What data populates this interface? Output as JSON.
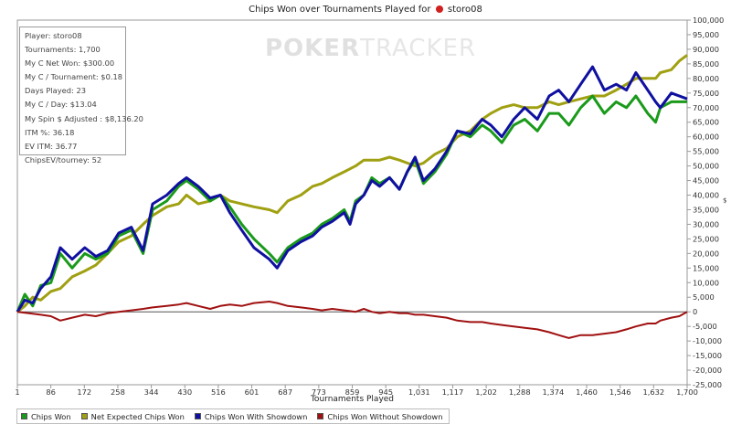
{
  "header": {
    "title_text": "Chips Won over Tournaments Played for",
    "player_name": "storo08",
    "flag_icon": "red-spade-icon"
  },
  "watermark": {
    "part1": "POKER",
    "part2": "TRACKER"
  },
  "stats": [
    "Player: storo08",
    "Tournaments: 1,700",
    "My C Net Won: $300.00",
    "My C / Tournament: $0.18",
    "Days Played: 23",
    "My C / Day: $13.04",
    "My Spin $ Adjusted : $8,136.20",
    "ITM %: 36.18",
    "EV ITM: 36.77",
    "ChipsEV/tourney: 52"
  ],
  "chart_data": {
    "type": "line",
    "title": "Chips Won over Tournaments Played for storo08",
    "xlabel": "Tournaments Played",
    "ylabel": "$",
    "xlim": [
      1,
      1700
    ],
    "ylim": [
      -25000,
      100000
    ],
    "x_ticks": [
      "1",
      "86",
      "172",
      "258",
      "344",
      "430",
      "516",
      "601",
      "687",
      "773",
      "859",
      "945",
      "1,031",
      "1,117",
      "1,202",
      "1,288",
      "1,374",
      "1,460",
      "1,546",
      "1,632",
      "1,700"
    ],
    "y_ticks": [
      "100,000",
      "95,000",
      "90,000",
      "85,000",
      "80,000",
      "75,000",
      "70,000",
      "65,000",
      "60,000",
      "55,000",
      "50,000",
      "45,000",
      "40,000",
      "35,000",
      "30,000",
      "25,000",
      "20,000",
      "15,000",
      "10,000",
      "5,000",
      "0",
      "-5,000",
      "-10,000",
      "-15,000",
      "-20,000",
      "-25,000"
    ],
    "legend_position": "bottom",
    "series": [
      {
        "name": "Chips Won",
        "color": "#1a9a1a",
        "points": [
          [
            1,
            0
          ],
          [
            20,
            6000
          ],
          [
            40,
            2000
          ],
          [
            60,
            9000
          ],
          [
            86,
            10000
          ],
          [
            110,
            20000
          ],
          [
            140,
            15000
          ],
          [
            172,
            20000
          ],
          [
            200,
            18000
          ],
          [
            230,
            20000
          ],
          [
            258,
            26000
          ],
          [
            290,
            28000
          ],
          [
            320,
            20000
          ],
          [
            344,
            35000
          ],
          [
            380,
            38000
          ],
          [
            410,
            43000
          ],
          [
            430,
            45000
          ],
          [
            460,
            42000
          ],
          [
            490,
            38000
          ],
          [
            516,
            40000
          ],
          [
            540,
            36000
          ],
          [
            570,
            30000
          ],
          [
            601,
            25000
          ],
          [
            640,
            20000
          ],
          [
            660,
            17000
          ],
          [
            687,
            22000
          ],
          [
            720,
            25000
          ],
          [
            750,
            27000
          ],
          [
            773,
            30000
          ],
          [
            800,
            32000
          ],
          [
            830,
            35000
          ],
          [
            845,
            31000
          ],
          [
            859,
            38000
          ],
          [
            880,
            40000
          ],
          [
            900,
            46000
          ],
          [
            920,
            44000
          ],
          [
            945,
            46000
          ],
          [
            970,
            42000
          ],
          [
            990,
            48000
          ],
          [
            1010,
            52000
          ],
          [
            1031,
            44000
          ],
          [
            1060,
            48000
          ],
          [
            1090,
            54000
          ],
          [
            1117,
            62000
          ],
          [
            1150,
            60000
          ],
          [
            1180,
            64000
          ],
          [
            1202,
            62000
          ],
          [
            1230,
            58000
          ],
          [
            1260,
            64000
          ],
          [
            1288,
            66000
          ],
          [
            1320,
            62000
          ],
          [
            1350,
            68000
          ],
          [
            1374,
            68000
          ],
          [
            1400,
            64000
          ],
          [
            1430,
            70000
          ],
          [
            1460,
            74000
          ],
          [
            1490,
            68000
          ],
          [
            1520,
            72000
          ],
          [
            1546,
            70000
          ],
          [
            1570,
            74000
          ],
          [
            1600,
            68000
          ],
          [
            1620,
            65000
          ],
          [
            1632,
            70000
          ],
          [
            1660,
            72000
          ],
          [
            1700,
            72000
          ]
        ]
      },
      {
        "name": "Net Expected Chips Won",
        "color": "#a0a012",
        "points": [
          [
            1,
            0
          ],
          [
            20,
            2000
          ],
          [
            40,
            5000
          ],
          [
            60,
            4000
          ],
          [
            86,
            7000
          ],
          [
            110,
            8000
          ],
          [
            140,
            12000
          ],
          [
            172,
            14000
          ],
          [
            200,
            16000
          ],
          [
            230,
            20000
          ],
          [
            258,
            24000
          ],
          [
            290,
            26000
          ],
          [
            320,
            30000
          ],
          [
            344,
            33000
          ],
          [
            380,
            36000
          ],
          [
            410,
            37000
          ],
          [
            430,
            40000
          ],
          [
            460,
            37000
          ],
          [
            490,
            38000
          ],
          [
            516,
            40000
          ],
          [
            540,
            38000
          ],
          [
            570,
            37000
          ],
          [
            601,
            36000
          ],
          [
            640,
            35000
          ],
          [
            660,
            34000
          ],
          [
            687,
            38000
          ],
          [
            720,
            40000
          ],
          [
            750,
            43000
          ],
          [
            773,
            44000
          ],
          [
            800,
            46000
          ],
          [
            830,
            48000
          ],
          [
            859,
            50000
          ],
          [
            880,
            52000
          ],
          [
            900,
            52000
          ],
          [
            920,
            52000
          ],
          [
            945,
            53000
          ],
          [
            970,
            52000
          ],
          [
            990,
            51000
          ],
          [
            1010,
            50000
          ],
          [
            1031,
            51000
          ],
          [
            1060,
            54000
          ],
          [
            1090,
            56000
          ],
          [
            1117,
            60000
          ],
          [
            1150,
            62000
          ],
          [
            1180,
            66000
          ],
          [
            1202,
            68000
          ],
          [
            1230,
            70000
          ],
          [
            1260,
            71000
          ],
          [
            1288,
            70000
          ],
          [
            1320,
            70000
          ],
          [
            1350,
            72000
          ],
          [
            1374,
            71000
          ],
          [
            1400,
            72000
          ],
          [
            1430,
            73000
          ],
          [
            1460,
            74000
          ],
          [
            1490,
            74000
          ],
          [
            1520,
            76000
          ],
          [
            1546,
            78000
          ],
          [
            1570,
            80000
          ],
          [
            1600,
            80000
          ],
          [
            1620,
            80000
          ],
          [
            1632,
            82000
          ],
          [
            1660,
            83000
          ],
          [
            1680,
            86000
          ],
          [
            1700,
            88000
          ]
        ]
      },
      {
        "name": "Chips Won With Showdown",
        "color": "#1010a0",
        "points": [
          [
            1,
            0
          ],
          [
            20,
            4000
          ],
          [
            40,
            3000
          ],
          [
            60,
            8000
          ],
          [
            86,
            12000
          ],
          [
            110,
            22000
          ],
          [
            140,
            18000
          ],
          [
            172,
            22000
          ],
          [
            200,
            19000
          ],
          [
            230,
            21000
          ],
          [
            258,
            27000
          ],
          [
            290,
            29000
          ],
          [
            320,
            21000
          ],
          [
            344,
            37000
          ],
          [
            380,
            40000
          ],
          [
            410,
            44000
          ],
          [
            430,
            46000
          ],
          [
            460,
            43000
          ],
          [
            490,
            39000
          ],
          [
            516,
            40000
          ],
          [
            540,
            34000
          ],
          [
            570,
            28000
          ],
          [
            601,
            22000
          ],
          [
            640,
            18000
          ],
          [
            660,
            15000
          ],
          [
            687,
            21000
          ],
          [
            720,
            24000
          ],
          [
            750,
            26000
          ],
          [
            773,
            29000
          ],
          [
            800,
            31000
          ],
          [
            830,
            34000
          ],
          [
            845,
            30000
          ],
          [
            859,
            37000
          ],
          [
            880,
            40000
          ],
          [
            900,
            45000
          ],
          [
            920,
            43000
          ],
          [
            945,
            46000
          ],
          [
            970,
            42000
          ],
          [
            990,
            48000
          ],
          [
            1010,
            53000
          ],
          [
            1031,
            45000
          ],
          [
            1060,
            49000
          ],
          [
            1090,
            55000
          ],
          [
            1117,
            62000
          ],
          [
            1150,
            61000
          ],
          [
            1180,
            66000
          ],
          [
            1202,
            64000
          ],
          [
            1230,
            60000
          ],
          [
            1260,
            66000
          ],
          [
            1288,
            70000
          ],
          [
            1320,
            66000
          ],
          [
            1350,
            74000
          ],
          [
            1374,
            76000
          ],
          [
            1400,
            72000
          ],
          [
            1430,
            78000
          ],
          [
            1460,
            84000
          ],
          [
            1490,
            76000
          ],
          [
            1520,
            78000
          ],
          [
            1546,
            76000
          ],
          [
            1570,
            82000
          ],
          [
            1600,
            76000
          ],
          [
            1620,
            72000
          ],
          [
            1632,
            70000
          ],
          [
            1660,
            75000
          ],
          [
            1700,
            73000
          ]
        ]
      },
      {
        "name": "Chips Won Without Showdown",
        "color": "#a01010",
        "points": [
          [
            1,
            0
          ],
          [
            30,
            -500
          ],
          [
            60,
            -1000
          ],
          [
            86,
            -1500
          ],
          [
            110,
            -3000
          ],
          [
            140,
            -2000
          ],
          [
            172,
            -1000
          ],
          [
            200,
            -1500
          ],
          [
            230,
            -500
          ],
          [
            258,
            0
          ],
          [
            290,
            500
          ],
          [
            320,
            1000
          ],
          [
            344,
            1500
          ],
          [
            380,
            2000
          ],
          [
            410,
            2500
          ],
          [
            430,
            3000
          ],
          [
            460,
            2000
          ],
          [
            490,
            1000
          ],
          [
            516,
            2000
          ],
          [
            540,
            2500
          ],
          [
            570,
            2000
          ],
          [
            601,
            3000
          ],
          [
            640,
            3500
          ],
          [
            660,
            3000
          ],
          [
            687,
            2000
          ],
          [
            720,
            1500
          ],
          [
            750,
            1000
          ],
          [
            773,
            500
          ],
          [
            800,
            1000
          ],
          [
            830,
            500
          ],
          [
            859,
            0
          ],
          [
            880,
            1000
          ],
          [
            900,
            0
          ],
          [
            920,
            -500
          ],
          [
            945,
            0
          ],
          [
            970,
            -500
          ],
          [
            990,
            -500
          ],
          [
            1010,
            -1000
          ],
          [
            1031,
            -1000
          ],
          [
            1060,
            -1500
          ],
          [
            1090,
            -2000
          ],
          [
            1117,
            -3000
          ],
          [
            1150,
            -3500
          ],
          [
            1180,
            -3500
          ],
          [
            1202,
            -4000
          ],
          [
            1230,
            -4500
          ],
          [
            1260,
            -5000
          ],
          [
            1288,
            -5500
          ],
          [
            1320,
            -6000
          ],
          [
            1350,
            -7000
          ],
          [
            1374,
            -8000
          ],
          [
            1400,
            -9000
          ],
          [
            1430,
            -8000
          ],
          [
            1460,
            -8000
          ],
          [
            1490,
            -7500
          ],
          [
            1520,
            -7000
          ],
          [
            1546,
            -6000
          ],
          [
            1570,
            -5000
          ],
          [
            1600,
            -4000
          ],
          [
            1620,
            -4000
          ],
          [
            1632,
            -3000
          ],
          [
            1660,
            -2000
          ],
          [
            1680,
            -1500
          ],
          [
            1700,
            0
          ]
        ]
      }
    ]
  }
}
